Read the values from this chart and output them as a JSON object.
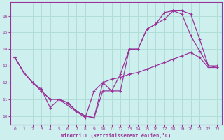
{
  "xlabel": "Windchill (Refroidissement éolien,°C)",
  "background_color": "#cdf0ee",
  "grid_color": "#b0ddd8",
  "line_color": "#993399",
  "xlim": [
    -0.5,
    23.5
  ],
  "ylim": [
    9.5,
    16.8
  ],
  "xticks": [
    0,
    1,
    2,
    3,
    4,
    5,
    6,
    7,
    8,
    9,
    10,
    11,
    12,
    13,
    14,
    15,
    16,
    17,
    18,
    19,
    20,
    21,
    22,
    23
  ],
  "yticks": [
    10,
    11,
    12,
    13,
    14,
    15,
    16
  ],
  "line1_x": [
    0,
    1,
    2,
    3,
    4,
    5,
    6,
    7,
    8,
    9,
    10,
    11,
    12,
    13,
    14,
    15,
    16,
    17,
    18,
    19,
    20,
    21,
    22,
    23
  ],
  "line1_y": [
    13.5,
    12.6,
    12.0,
    11.5,
    11.0,
    11.0,
    10.8,
    10.3,
    10.0,
    9.9,
    11.5,
    11.5,
    12.5,
    14.0,
    14.0,
    15.2,
    15.5,
    15.8,
    16.3,
    16.3,
    16.1,
    14.6,
    13.0,
    13.0
  ],
  "line2_x": [
    0,
    1,
    2,
    3,
    4,
    5,
    6,
    7,
    8,
    9,
    10,
    11,
    12,
    13,
    14,
    15,
    16,
    17,
    18,
    19,
    20,
    21,
    22,
    23
  ],
  "line2_y": [
    13.5,
    12.6,
    12.0,
    11.5,
    11.0,
    11.0,
    10.8,
    10.3,
    10.0,
    9.9,
    12.0,
    12.2,
    12.3,
    12.5,
    12.6,
    12.8,
    13.0,
    13.2,
    13.4,
    13.6,
    13.8,
    13.5,
    12.9,
    12.9
  ],
  "line3_x": [
    0,
    1,
    2,
    3,
    4,
    5,
    8,
    9,
    10,
    11,
    12,
    13,
    14,
    15,
    16,
    17,
    18,
    19,
    20,
    21,
    22,
    23
  ],
  "line3_y": [
    13.5,
    12.6,
    12.0,
    11.6,
    10.5,
    11.0,
    9.9,
    11.5,
    12.0,
    11.5,
    11.5,
    14.0,
    14.0,
    15.2,
    15.5,
    16.2,
    16.3,
    16.1,
    14.8,
    13.9,
    13.0,
    12.9
  ]
}
